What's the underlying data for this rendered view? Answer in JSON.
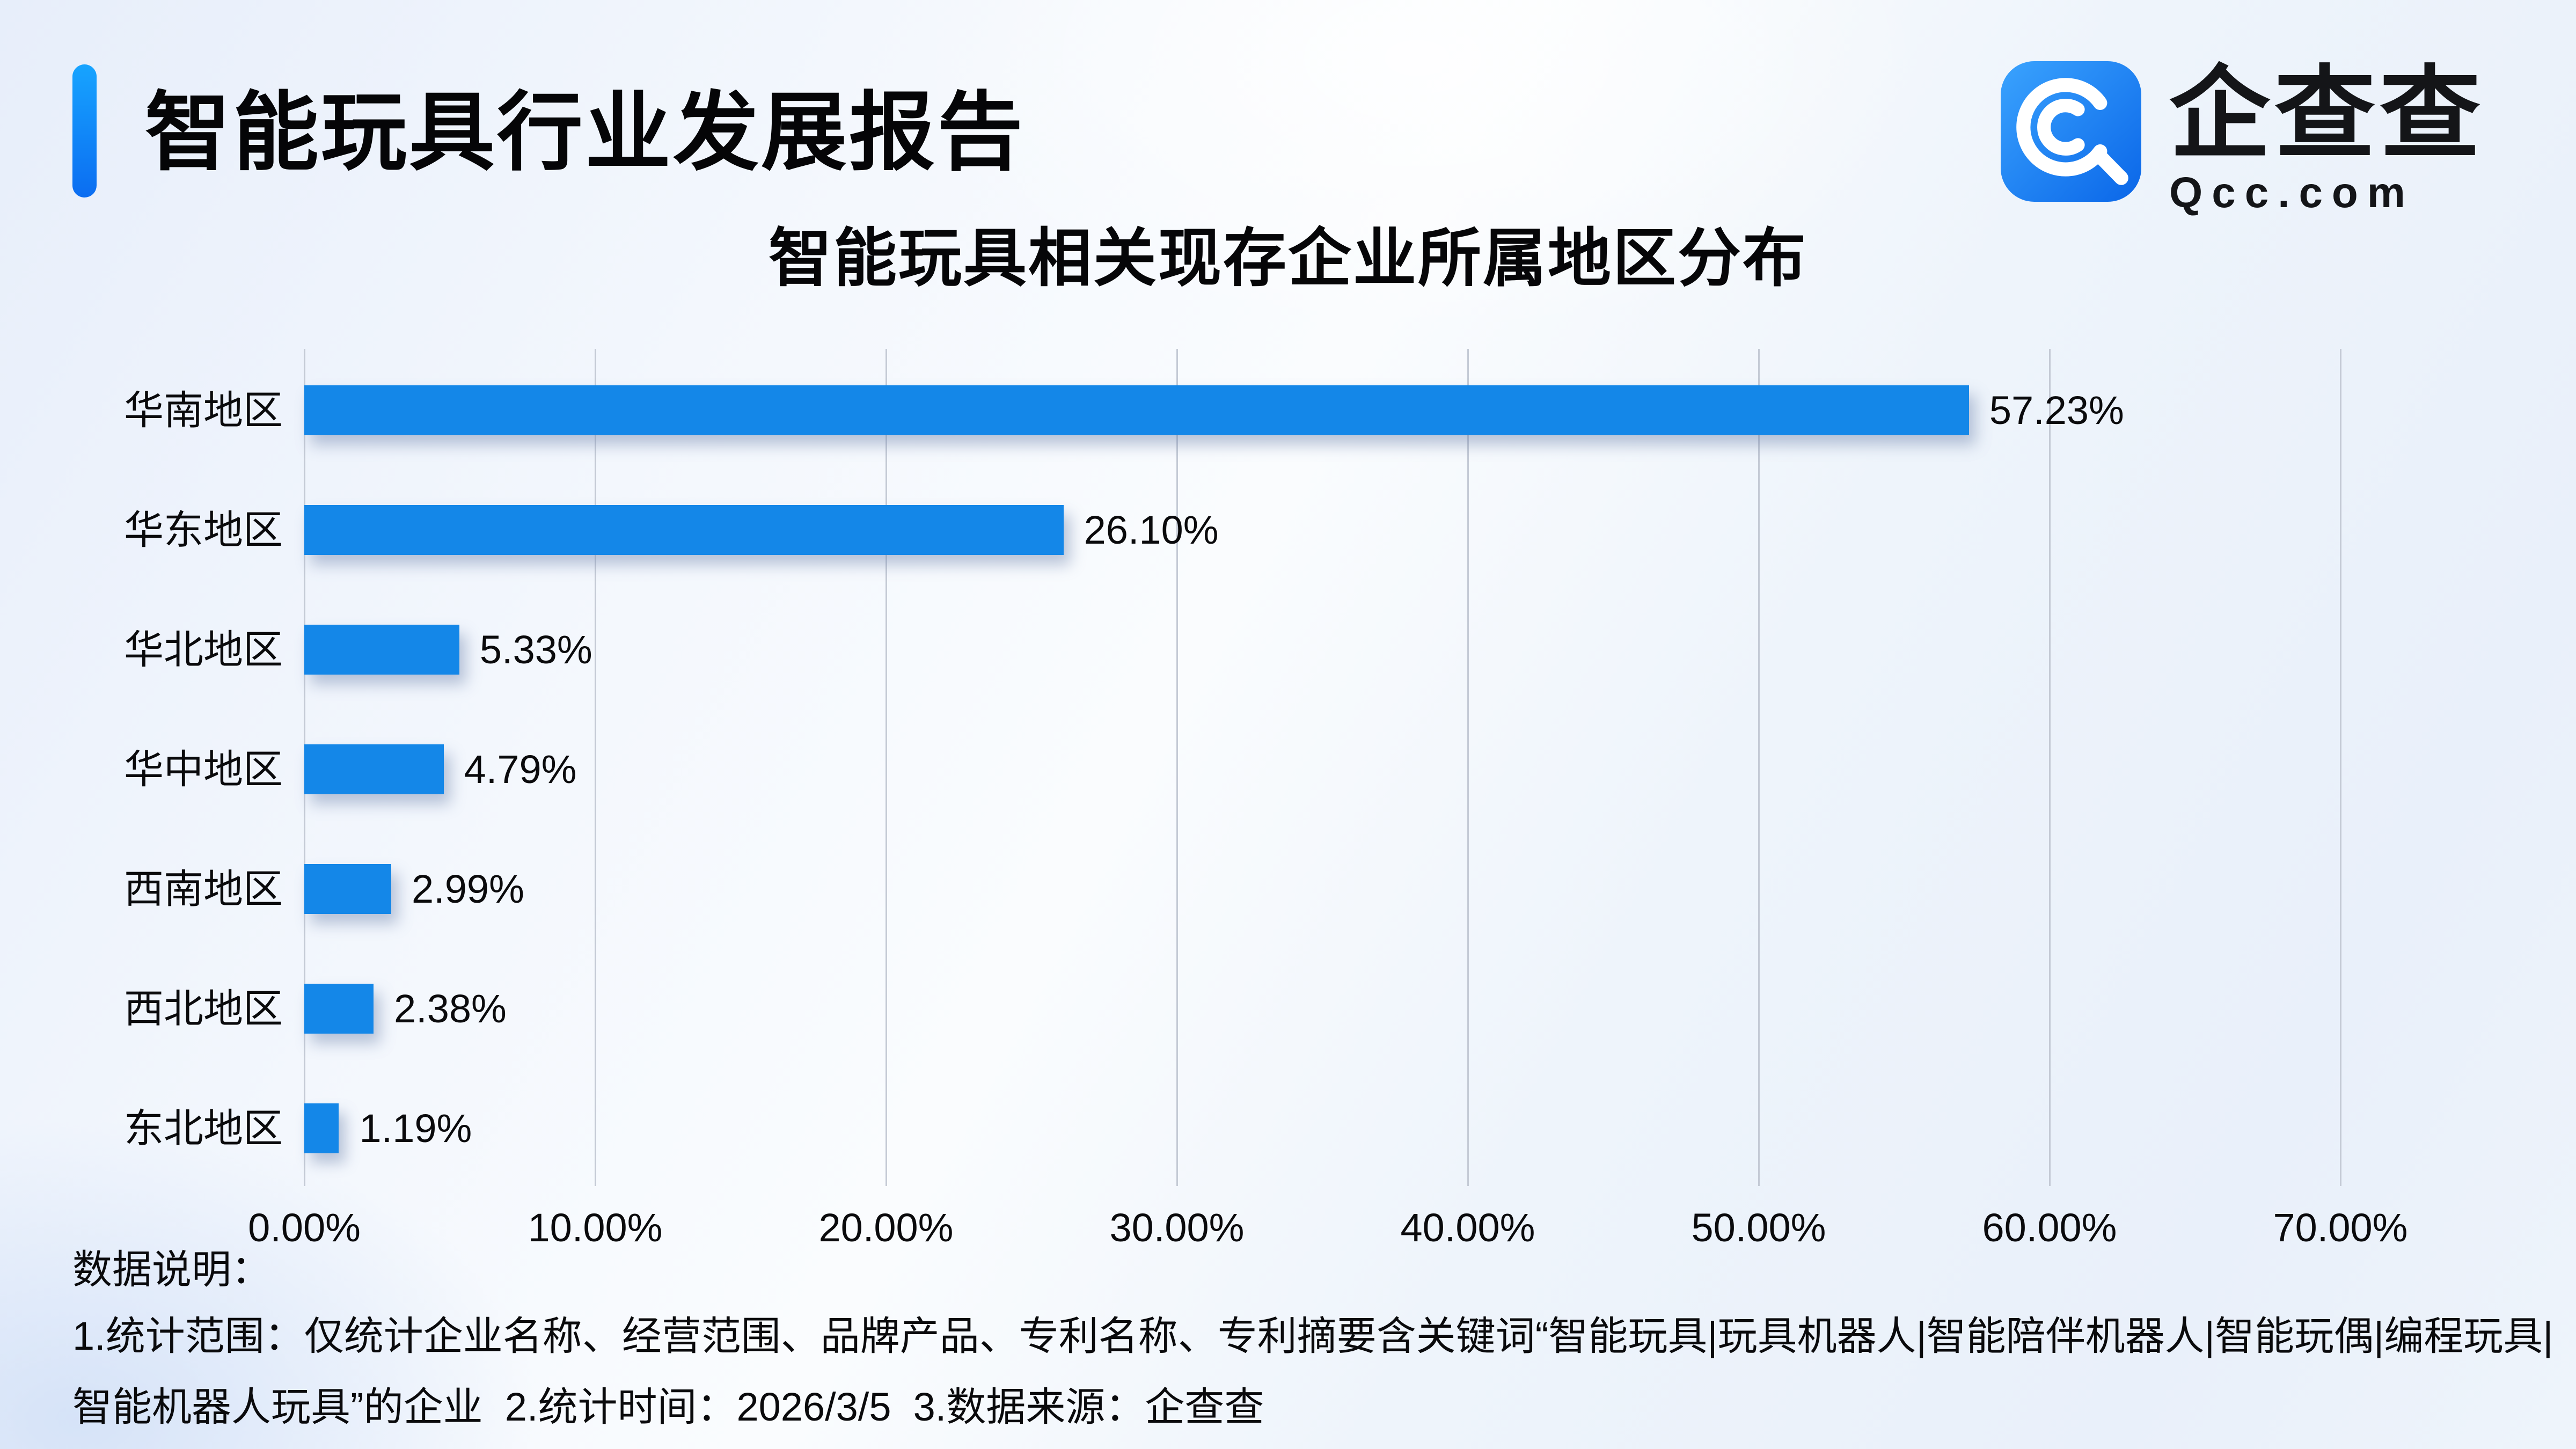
{
  "header": {
    "title": "智能玩具行业发展报告",
    "logo": {
      "icon": "qcc-magnifier-icon",
      "brand": "企查查",
      "domain": "Qcc.com"
    }
  },
  "chart_data": {
    "type": "bar",
    "orientation": "horizontal",
    "title": "智能玩具相关现存企业所属地区分布",
    "categories": [
      "华南地区",
      "华东地区",
      "华北地区",
      "华中地区",
      "西南地区",
      "西北地区",
      "东北地区"
    ],
    "values": [
      57.23,
      26.1,
      5.33,
      4.79,
      2.99,
      2.38,
      1.19
    ],
    "value_labels": [
      "57.23%",
      "26.10%",
      "5.33%",
      "4.79%",
      "2.99%",
      "2.38%",
      "1.19%"
    ],
    "x_ticks": [
      "0.00%",
      "10.00%",
      "20.00%",
      "30.00%",
      "40.00%",
      "50.00%",
      "60.00%",
      "70.00%"
    ],
    "xlim": [
      0,
      70
    ],
    "grid": true,
    "legend": false,
    "bar_color": "#1487e8"
  },
  "notes": {
    "heading": "数据说明：",
    "line1": "1.统计范围：仅统计企业名称、经营范围、品牌产品、专利名称、专利摘要含关键词“智能玩具|玩具机器人|智能陪伴机器人|智能玩偶|编程玩具|",
    "line2": "智能机器人玩具”的企业  2.统计时间：2026/3/5  3.数据来源：企查查"
  },
  "colors": {
    "accent_gradient_top": "#17a4ff",
    "accent_gradient_bottom": "#0b6df1",
    "gridline": "#c4cad5",
    "text": "#0a0a0c"
  }
}
